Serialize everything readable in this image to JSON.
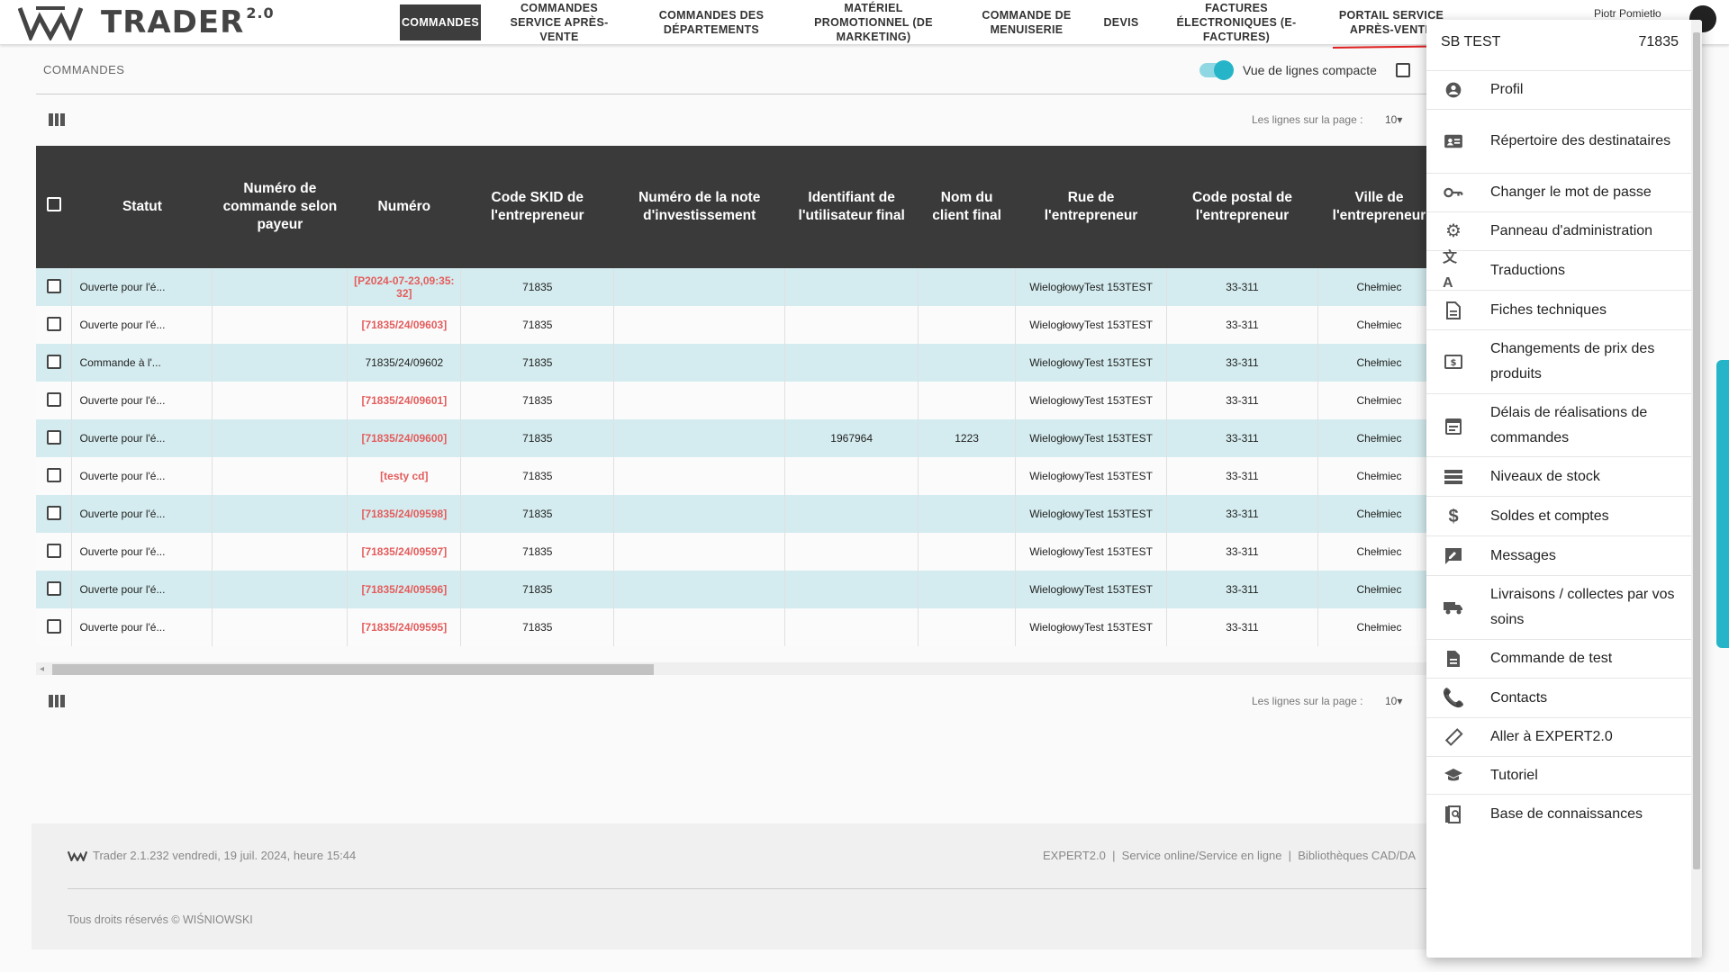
{
  "app": {
    "brand": "TRADER",
    "brand_sup": "2.0"
  },
  "nav": [
    {
      "label": "COMMANDES",
      "active": true
    },
    {
      "label": "COMMANDES SERVICE APRÈS-VENTE"
    },
    {
      "label": "COMMANDES DES DÉPARTEMENTS"
    },
    {
      "label": "MATÉRIEL PROMOTIONNEL (DE MARKETING)"
    },
    {
      "label": "COMMANDE DE MENUISERIE"
    },
    {
      "label": "DEVIS"
    },
    {
      "label": "FACTURES ÉLECTRONIQUES (E-FACTURES)"
    },
    {
      "label": "PORTAIL SERVICE APRÈS-VENTE"
    }
  ],
  "user": {
    "name": "Piotr Pomietło"
  },
  "section": {
    "title": "COMMANDES",
    "compact_label": "Vue de lignes compacte"
  },
  "pagination": {
    "label": "Les lignes sur la page :",
    "value": "10"
  },
  "table": {
    "headers": [
      "Statut",
      "Numéro de commande selon payeur",
      "Numéro",
      "Code SKID de l'entrepreneur",
      "Numéro de la note d'investissement",
      "Identifiant de l'utilisateur final",
      "Nom du client final",
      "Rue de l'entrepreneur",
      "Code postal de l'entrepreneur",
      "Ville de l'entrepreneur"
    ],
    "rows": [
      {
        "status": "Ouverte pour l'é...",
        "payer": "",
        "number": "[P2024-07-23,09:35:32]",
        "red": true,
        "skid": "71835",
        "note": "",
        "userid": "",
        "client": "",
        "street": "WielogłowyTest 153TEST",
        "zip": "33-311",
        "city": "Chełmiec"
      },
      {
        "status": "Ouverte pour l'é...",
        "payer": "",
        "number": "[71835/24/09603]",
        "red": true,
        "skid": "71835",
        "note": "",
        "userid": "",
        "client": "",
        "street": "WielogłowyTest 153TEST",
        "zip": "33-311",
        "city": "Chełmiec"
      },
      {
        "status": "Commande à l'...",
        "payer": "",
        "number": "71835/24/09602",
        "red": false,
        "skid": "71835",
        "note": "",
        "userid": "",
        "client": "",
        "street": "WielogłowyTest 153TEST",
        "zip": "33-311",
        "city": "Chełmiec"
      },
      {
        "status": "Ouverte pour l'é...",
        "payer": "",
        "number": "[71835/24/09601]",
        "red": true,
        "skid": "71835",
        "note": "",
        "userid": "",
        "client": "",
        "street": "WielogłowyTest 153TEST",
        "zip": "33-311",
        "city": "Chełmiec"
      },
      {
        "status": "Ouverte pour l'é...",
        "payer": "",
        "number": "[71835/24/09600]",
        "red": true,
        "skid": "71835",
        "note": "",
        "userid": "1967964",
        "client": "1223",
        "street": "WielogłowyTest 153TEST",
        "zip": "33-311",
        "city": "Chełmiec"
      },
      {
        "status": "Ouverte pour l'é...",
        "payer": "",
        "number": "[testy cd]",
        "red": true,
        "skid": "71835",
        "note": "",
        "userid": "",
        "client": "",
        "street": "WielogłowyTest 153TEST",
        "zip": "33-311",
        "city": "Chełmiec"
      },
      {
        "status": "Ouverte pour l'é...",
        "payer": "",
        "number": "[71835/24/09598]",
        "red": true,
        "skid": "71835",
        "note": "",
        "userid": "",
        "client": "",
        "street": "WielogłowyTest 153TEST",
        "zip": "33-311",
        "city": "Chełmiec"
      },
      {
        "status": "Ouverte pour l'é...",
        "payer": "",
        "number": "[71835/24/09597]",
        "red": true,
        "skid": "71835",
        "note": "",
        "userid": "",
        "client": "",
        "street": "WielogłowyTest 153TEST",
        "zip": "33-311",
        "city": "Chełmiec"
      },
      {
        "status": "Ouverte pour l'é...",
        "payer": "",
        "number": "[71835/24/09596]",
        "red": true,
        "skid": "71835",
        "note": "",
        "userid": "",
        "client": "",
        "street": "WielogłowyTest 153TEST",
        "zip": "33-311",
        "city": "Chełmiec"
      },
      {
        "status": "Ouverte pour l'é...",
        "payer": "",
        "number": "[71835/24/09595]",
        "red": true,
        "skid": "71835",
        "note": "",
        "userid": "",
        "client": "",
        "street": "WielogłowyTest 153TEST",
        "zip": "33-311",
        "city": "Chełmiec"
      }
    ]
  },
  "footer": {
    "version": "Trader 2.1.232 vendredi, 19 juil. 2024, heure 15:44",
    "links": "EXPERT2.0  |  Service online/Service en ligne  |  Bibliothèques CAD/DA",
    "copyright": "Tous droits réservés © WIŚNIOWSKI"
  },
  "dropdown": {
    "account_name": "SB TEST",
    "account_code": "71835",
    "items": [
      {
        "label": "Profil",
        "icon": "account-circle-icon"
      },
      {
        "label": "Répertoire des destinataires",
        "icon": "contact-card-icon"
      },
      {
        "label": "Changer le mot de passe",
        "icon": "key-icon"
      },
      {
        "label": "Panneau d'administration",
        "icon": "gear-icon"
      },
      {
        "label": "Traductions",
        "icon": "translate-icon"
      },
      {
        "label": "Fiches techniques",
        "icon": "document-icon"
      },
      {
        "label": "Changements de prix des produits",
        "icon": "price-tag-icon"
      },
      {
        "label": "Délais de réalisations de commandes",
        "icon": "calendar-icon"
      },
      {
        "label": "Niveaux de stock",
        "icon": "storage-icon"
      },
      {
        "label": "Soldes et comptes",
        "icon": "dollar-icon"
      },
      {
        "label": "Messages",
        "icon": "message-icon"
      },
      {
        "label": "Livraisons / collectes par vos soins",
        "icon": "truck-icon"
      },
      {
        "label": "Commande de test",
        "icon": "file-icon"
      },
      {
        "label": "Contacts",
        "icon": "phone-icon"
      },
      {
        "label": "Aller à EXPERT2.0",
        "icon": "ruler-icon"
      },
      {
        "label": "Tutoriel",
        "icon": "graduation-cap-icon"
      },
      {
        "label": "Base de connaissances",
        "icon": "knowledge-base-icon"
      }
    ]
  },
  "colors": {
    "accent": "#26b5c8",
    "header_dark": "#3a3a3a",
    "row_alt": "#d4ecef",
    "link_red": "#e45c5c",
    "arrow_red": "#e02020"
  }
}
